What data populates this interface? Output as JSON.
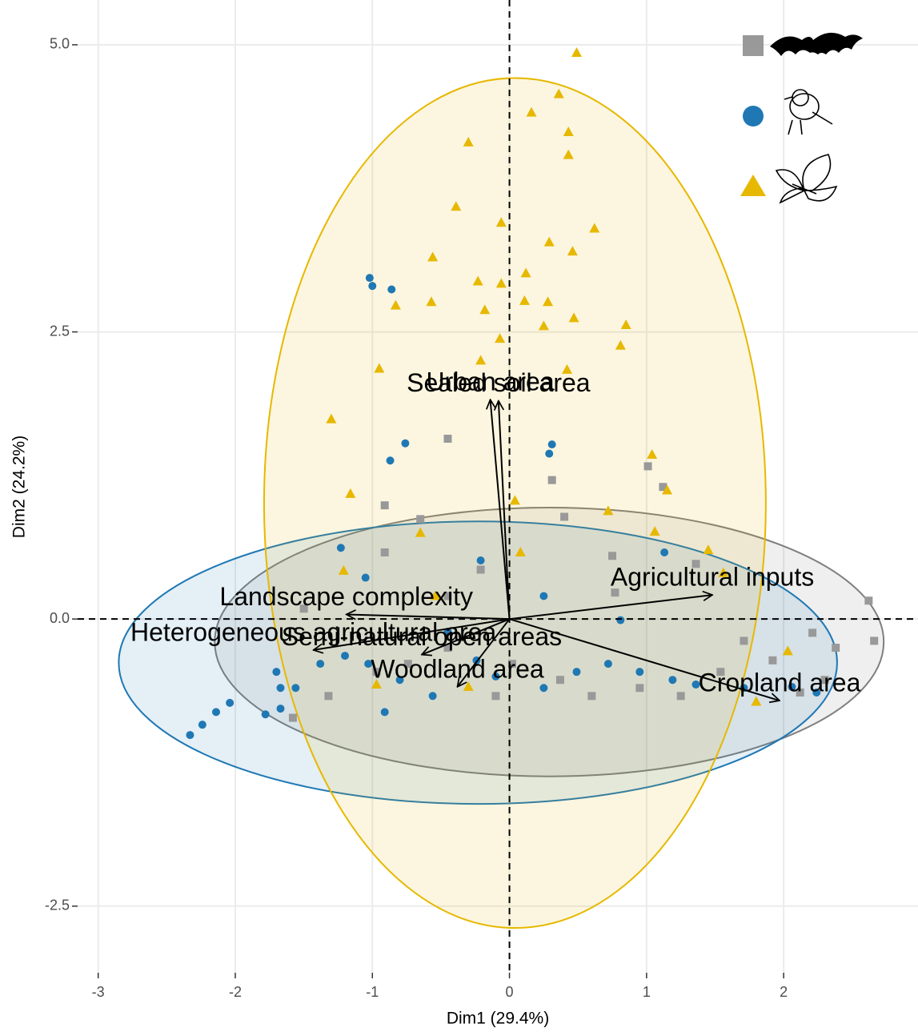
{
  "chart_data": {
    "type": "pca-biplot",
    "x_label": "Dim1 (29.4%)",
    "y_label": "Dim2 (24.2%)",
    "xlim": [
      -3.15,
      2.98
    ],
    "ylim": [
      -3.08,
      5.39
    ],
    "xticks": [
      -3,
      -2,
      -1,
      0,
      1,
      2
    ],
    "yticks": [
      -2.5,
      {
        "value": 0,
        "label": "0.0"
      },
      2.5,
      {
        "value": 5,
        "label": "5.0"
      }
    ],
    "grid": true,
    "series": [
      {
        "shape": "square",
        "color": "#999999",
        "ellipse": {
          "cx": 0.29,
          "cy": -0.2,
          "rx": 2.44,
          "ry": 1.17,
          "color": "#7f7f7f"
        },
        "x": [
          -0.45,
          1.01,
          1.12,
          0.31,
          -0.91,
          -0.65,
          0.4,
          0.75,
          1.36,
          -0.91,
          -0.21,
          0.77,
          2.62,
          2.66,
          2.38,
          1.92,
          2.3,
          2.12,
          1.54,
          0.95,
          0.37,
          0.02,
          -0.45,
          -0.74,
          -0.97,
          -1.32,
          -1.58,
          -0.1,
          0.6,
          1.25,
          2.21,
          -0.45,
          -1.5,
          1.71
        ],
        "y": [
          1.57,
          1.33,
          1.15,
          1.21,
          0.99,
          0.87,
          0.89,
          0.55,
          0.48,
          0.58,
          0.43,
          0.23,
          0.16,
          -0.19,
          -0.25,
          -0.36,
          -0.53,
          -0.64,
          -0.46,
          -0.6,
          -0.53,
          -0.39,
          -0.25,
          -0.39,
          -0.46,
          -0.67,
          -0.86,
          -0.67,
          -0.67,
          -0.67,
          -0.12,
          0.2,
          0.09,
          -0.19
        ]
      },
      {
        "shape": "circle",
        "color": "#1f78b4",
        "ellipse": {
          "cx": -0.23,
          "cy": -0.38,
          "rx": 2.62,
          "ry": 1.23,
          "color": "#1f78b4"
        },
        "x": [
          -1.02,
          -1.0,
          -0.86,
          -0.76,
          -0.87,
          0.31,
          0.29,
          -2.33,
          -2.24,
          -2.14,
          -2.04,
          -1.78,
          -1.67,
          -1.56,
          -1.7,
          -1.38,
          -1.2,
          -1.03,
          -0.8,
          -0.91,
          -0.56,
          -0.24,
          -0.1,
          0.25,
          0.49,
          0.72,
          0.95,
          1.19,
          1.36,
          1.71,
          2.06,
          2.24,
          -1.23,
          -1.05,
          -0.21,
          0.25,
          0.81,
          1.13,
          -0.45,
          -1.67
        ],
        "y": [
          2.97,
          2.9,
          2.87,
          1.53,
          1.38,
          1.52,
          1.44,
          -1.01,
          -0.92,
          -0.81,
          -0.73,
          -0.83,
          -0.78,
          -0.6,
          -0.46,
          -0.39,
          -0.32,
          -0.39,
          -0.53,
          -0.81,
          -0.67,
          -0.36,
          -0.5,
          -0.6,
          -0.46,
          -0.39,
          -0.46,
          -0.53,
          -0.57,
          -0.6,
          -0.59,
          -0.64,
          0.62,
          0.36,
          0.51,
          0.2,
          -0.01,
          0.58,
          -0.11,
          -0.6
        ]
      },
      {
        "shape": "triangle",
        "color": "#e7b800",
        "ellipse": {
          "cx": 0.04,
          "cy": 1.01,
          "rx": 1.83,
          "ry": 3.7,
          "color": "#e7b800"
        },
        "x": [
          0.49,
          0.36,
          0.16,
          0.43,
          -0.3,
          0.43,
          -0.39,
          -0.06,
          0.62,
          0.29,
          -0.56,
          0.46,
          0.12,
          -0.23,
          -0.06,
          -0.83,
          -0.57,
          0.11,
          0.28,
          -0.18,
          0.47,
          0.85,
          0.25,
          -0.07,
          0.81,
          -0.21,
          -0.95,
          0.42,
          -1.3,
          1.04,
          -1.16,
          1.15,
          0.04,
          0.72,
          1.06,
          1.45,
          1.56,
          -0.54,
          -1.21,
          2.03,
          1.8,
          -0.97,
          -0.3,
          -0.65,
          0.08
        ],
        "y": [
          4.93,
          4.57,
          4.41,
          4.24,
          4.15,
          4.04,
          3.59,
          3.45,
          3.4,
          3.28,
          3.15,
          3.2,
          3.01,
          2.94,
          2.92,
          2.73,
          2.76,
          2.77,
          2.76,
          2.69,
          2.62,
          2.56,
          2.55,
          2.44,
          2.38,
          2.25,
          2.18,
          2.17,
          1.74,
          1.43,
          1.09,
          1.12,
          1.03,
          0.94,
          0.76,
          0.6,
          0.4,
          0.2,
          0.42,
          -0.28,
          -0.72,
          -0.57,
          -0.59,
          0.75,
          0.58
        ]
      }
    ],
    "variables": [
      {
        "label": "Urban area",
        "x": -0.14,
        "y": 1.91
      },
      {
        "label": "Sealed soil area",
        "x": -0.08,
        "y": 1.9
      },
      {
        "label": "Landscape complexity",
        "x": -1.19,
        "y": 0.04
      },
      {
        "label": "Heterogeneous agricultural area",
        "x": -1.43,
        "y": -0.27
      },
      {
        "label": "Semi-natural open areas",
        "x": -0.64,
        "y": -0.31
      },
      {
        "label": "Woodland area",
        "x": -0.38,
        "y": -0.59
      },
      {
        "label": "Agricultural inputs",
        "x": 1.48,
        "y": 0.21
      },
      {
        "label": "Cropland area",
        "x": 1.97,
        "y": -0.71
      }
    ]
  }
}
